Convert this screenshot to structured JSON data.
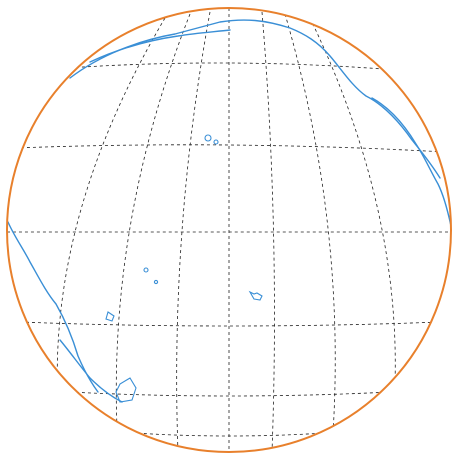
{
  "map": {
    "projection": "orthographic",
    "central_longitude": -160,
    "central_latitude": 10,
    "graticule_spacing_deg": 20,
    "graticule_style": "dashed",
    "features": [
      "coastlines",
      "graticule",
      "globe-outline"
    ]
  },
  "colors": {
    "background": "#ffffff",
    "outline": "#e8802c",
    "coastline": "#3a8fd6",
    "graticule": "#222222"
  }
}
